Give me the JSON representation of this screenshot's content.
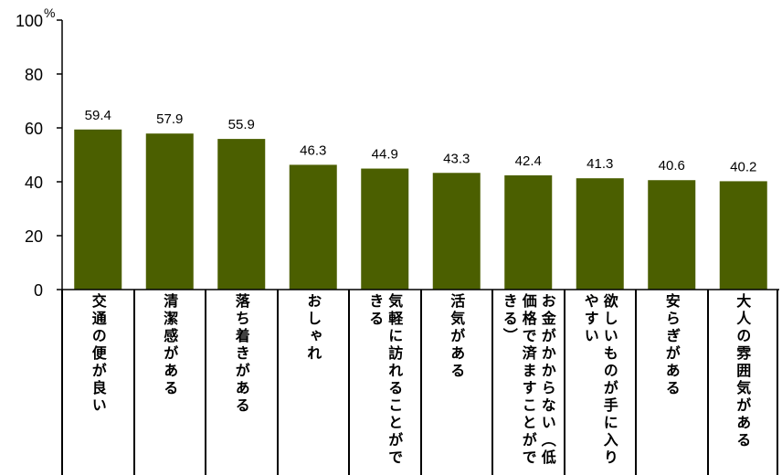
{
  "chart_data": {
    "type": "bar",
    "categories": [
      "交通の便が良い",
      "清潔感がある",
      "落ち着きがある",
      "おしゃれ",
      "気軽に訪れることができる",
      "活気がある",
      "お金がかからない（低価格で済ますことができる）",
      "欲しいものが手に入りやすい",
      "安らぎがある",
      "大人の雰囲気がある"
    ],
    "values": [
      59.4,
      57.9,
      55.9,
      46.3,
      44.9,
      43.3,
      42.4,
      41.3,
      40.6,
      40.2
    ],
    "y_unit": "%",
    "ylim": [
      0,
      100
    ],
    "yticks": [
      0,
      20,
      40,
      60,
      80,
      100
    ],
    "grid": false,
    "legend": false,
    "bar_color": "#4b5f00"
  }
}
